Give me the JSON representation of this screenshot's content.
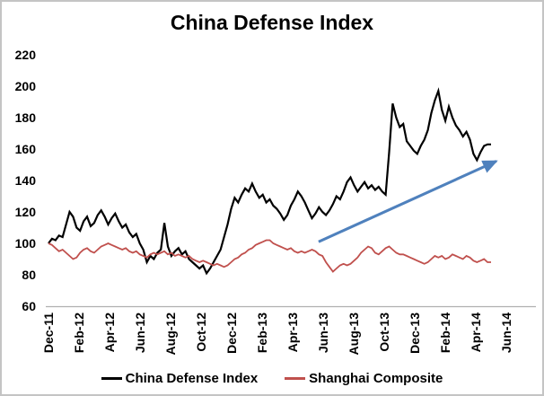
{
  "chart_data": {
    "type": "line",
    "title": "China Defense Index",
    "xlabel": "",
    "ylabel": "",
    "y_ticks": [
      220,
      200,
      180,
      160,
      140,
      120,
      100,
      80,
      60
    ],
    "ylim": [
      60,
      220
    ],
    "x_tick_labels": [
      "Dec-11",
      "Feb-12",
      "Apr-12",
      "Jun-12",
      "Aug-12",
      "Oct-12",
      "Dec-12",
      "Feb-13",
      "Apr-13",
      "Jun-13",
      "Aug-13",
      "Oct-13",
      "Dec-13",
      "Feb-14",
      "Apr-14",
      "Jun-14"
    ],
    "x_tick_months": [
      0,
      2,
      4,
      6,
      8,
      10,
      12,
      14,
      16,
      18,
      20,
      22,
      24,
      26,
      28,
      30
    ],
    "xlim_months": [
      0,
      30.5
    ],
    "grid": "off",
    "axis_line_color": "#b0b0b0",
    "legend_position": "bottom",
    "series": [
      {
        "name": "China Defense Index",
        "color": "#000000",
        "stroke_width": 2.2,
        "start_month": 0,
        "end_month": 29,
        "sampling": "weekly",
        "values": [
          100,
          103,
          102,
          105,
          104,
          112,
          120,
          117,
          110,
          108,
          114,
          117,
          111,
          113,
          118,
          121,
          117,
          112,
          116,
          119,
          114,
          110,
          112,
          107,
          104,
          106,
          100,
          96,
          88,
          92,
          90,
          94,
          96,
          113,
          98,
          92,
          95,
          97,
          93,
          95,
          90,
          88,
          86,
          84,
          86,
          81,
          84,
          88,
          92,
          96,
          104,
          112,
          122,
          129,
          126,
          131,
          135,
          133,
          138,
          133,
          129,
          131,
          126,
          128,
          124,
          122,
          119,
          115,
          118,
          124,
          128,
          133,
          130,
          126,
          121,
          116,
          119,
          123,
          120,
          118,
          121,
          125,
          130,
          128,
          133,
          139,
          142,
          137,
          133,
          136,
          139,
          135,
          137,
          134,
          136,
          133,
          131,
          158,
          189,
          180,
          174,
          176,
          165,
          162,
          159,
          157,
          162,
          166,
          172,
          183,
          191,
          197,
          185,
          178,
          187,
          180,
          175,
          172,
          168,
          171,
          166,
          157,
          153,
          158,
          162,
          163,
          163
        ]
      },
      {
        "name": "Shanghai Composite",
        "color": "#c0504d",
        "stroke_width": 1.8,
        "start_month": 0,
        "end_month": 29,
        "sampling": "weekly",
        "values": [
          100,
          99,
          97,
          95,
          96,
          94,
          92,
          90,
          91,
          94,
          96,
          97,
          95,
          94,
          96,
          98,
          99,
          100,
          99,
          98,
          97,
          96,
          97,
          95,
          94,
          95,
          93,
          92,
          91,
          93,
          94,
          93,
          94,
          95,
          93,
          94,
          92,
          93,
          92,
          91,
          92,
          90,
          89,
          88,
          89,
          88,
          87,
          86,
          87,
          86,
          85,
          86,
          88,
          90,
          91,
          93,
          94,
          96,
          97,
          99,
          100,
          101,
          102,
          102,
          100,
          99,
          98,
          97,
          96,
          97,
          95,
          94,
          95,
          94,
          95,
          96,
          95,
          93,
          92,
          88,
          85,
          82,
          84,
          86,
          87,
          86,
          87,
          89,
          91,
          94,
          96,
          98,
          97,
          94,
          93,
          95,
          97,
          98,
          96,
          94,
          93,
          93,
          92,
          91,
          90,
          89,
          88,
          87,
          88,
          90,
          92,
          91,
          92,
          90,
          91,
          93,
          92,
          91,
          90,
          92,
          91,
          89,
          88,
          89,
          90,
          88,
          88
        ]
      }
    ],
    "annotation_arrow": {
      "description": "upward trend arrow",
      "color": "#4f81bd",
      "stroke_width": 3.1,
      "start": {
        "month": 17.7,
        "value": 101
      },
      "end": {
        "month": 29.7,
        "value": 154
      }
    },
    "legend": [
      {
        "label": "China Defense Index",
        "color": "#000000"
      },
      {
        "label": "Shanghai Composite",
        "color": "#c0504d"
      }
    ]
  }
}
